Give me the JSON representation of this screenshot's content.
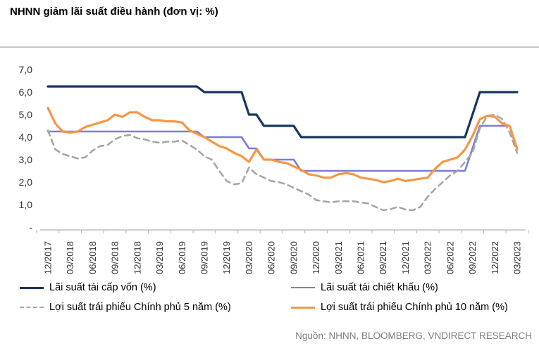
{
  "title": "NHNN giảm lãi suất điều hành (đơn vị: %)",
  "source": "Nguồn: NHNN, BLOOMBERG, VNDIRECT RESEARCH",
  "colors": {
    "refinancing": "#17365d",
    "rediscount": "#7c7cdb",
    "bond5y": "#a6a6a6",
    "bond10y": "#f79646",
    "axis": "#bfbfbf",
    "tick_label": "#333333",
    "source_text": "#808080"
  },
  "chart_data": {
    "type": "line",
    "title": "NHNN giảm lãi suất điều hành (đơn vị: %)",
    "xlabel": "",
    "ylabel": "%",
    "ylim": [
      0,
      7
    ],
    "grid": false,
    "legend_position": "bottom",
    "y_ticks": [
      "7,0",
      "6,0",
      "5,0",
      "4,0",
      "3,0",
      "2,0",
      "1,0",
      "-"
    ],
    "y_tick_values": [
      7,
      6,
      5,
      4,
      3,
      2,
      1,
      0
    ],
    "x_tick_labels": [
      "12/2017",
      "03/2018",
      "06/2018",
      "09/2018",
      "12/2018",
      "03/2019",
      "06/2019",
      "09/2019",
      "12/2019",
      "03/2020",
      "06/2020",
      "09/2020",
      "12/2020",
      "03/2021",
      "06/2021",
      "09/2021",
      "12/2021",
      "03/2022",
      "06/2022",
      "09/2022",
      "12/2022",
      "03/2023"
    ],
    "x": [
      "12/2017",
      "01/2018",
      "02/2018",
      "03/2018",
      "04/2018",
      "05/2018",
      "06/2018",
      "07/2018",
      "08/2018",
      "09/2018",
      "10/2018",
      "11/2018",
      "12/2018",
      "01/2019",
      "02/2019",
      "03/2019",
      "04/2019",
      "05/2019",
      "06/2019",
      "07/2019",
      "08/2019",
      "09/2019",
      "10/2019",
      "11/2019",
      "12/2019",
      "01/2020",
      "02/2020",
      "03/2020",
      "04/2020",
      "05/2020",
      "06/2020",
      "07/2020",
      "08/2020",
      "09/2020",
      "10/2020",
      "11/2020",
      "12/2020",
      "01/2021",
      "02/2021",
      "03/2021",
      "04/2021",
      "05/2021",
      "06/2021",
      "07/2021",
      "08/2021",
      "09/2021",
      "10/2021",
      "11/2021",
      "12/2021",
      "01/2022",
      "02/2022",
      "03/2022",
      "04/2022",
      "05/2022",
      "06/2022",
      "07/2022",
      "08/2022",
      "09/2022",
      "10/2022",
      "11/2022",
      "12/2022",
      "01/2023",
      "02/2023",
      "03/2023"
    ],
    "series": [
      {
        "name": "Lãi suất tái cấp vốn (%)",
        "style": "solid",
        "color_key": "refinancing",
        "width": 3.2,
        "values": [
          6.25,
          6.25,
          6.25,
          6.25,
          6.25,
          6.25,
          6.25,
          6.25,
          6.25,
          6.25,
          6.25,
          6.25,
          6.25,
          6.25,
          6.25,
          6.25,
          6.25,
          6.25,
          6.25,
          6.25,
          6.25,
          6.0,
          6.0,
          6.0,
          6.0,
          6.0,
          6.0,
          5.0,
          5.0,
          4.5,
          4.5,
          4.5,
          4.5,
          4.5,
          4.0,
          4.0,
          4.0,
          4.0,
          4.0,
          4.0,
          4.0,
          4.0,
          4.0,
          4.0,
          4.0,
          4.0,
          4.0,
          4.0,
          4.0,
          4.0,
          4.0,
          4.0,
          4.0,
          4.0,
          4.0,
          4.0,
          4.0,
          5.0,
          6.0,
          6.0,
          6.0,
          6.0,
          6.0,
          6.0
        ]
      },
      {
        "name": "Lãi suất tái chiết khấu (%)",
        "style": "solid",
        "color_key": "rediscount",
        "width": 2.6,
        "values": [
          4.25,
          4.25,
          4.25,
          4.25,
          4.25,
          4.25,
          4.25,
          4.25,
          4.25,
          4.25,
          4.25,
          4.25,
          4.25,
          4.25,
          4.25,
          4.25,
          4.25,
          4.25,
          4.25,
          4.25,
          4.25,
          4.0,
          4.0,
          4.0,
          4.0,
          4.0,
          4.0,
          3.5,
          3.5,
          3.0,
          3.0,
          3.0,
          3.0,
          3.0,
          2.5,
          2.5,
          2.5,
          2.5,
          2.5,
          2.5,
          2.5,
          2.5,
          2.5,
          2.5,
          2.5,
          2.5,
          2.5,
          2.5,
          2.5,
          2.5,
          2.5,
          2.5,
          2.5,
          2.5,
          2.5,
          2.5,
          2.5,
          3.5,
          4.5,
          4.5,
          4.5,
          4.5,
          4.5,
          3.5
        ]
      },
      {
        "name": "Lợi suất trái phiếu Chính phủ 5 năm (%)",
        "style": "dashed",
        "color_key": "bond5y",
        "width": 2.6,
        "values": [
          4.3,
          3.45,
          3.25,
          3.15,
          3.05,
          3.1,
          3.4,
          3.6,
          3.65,
          3.9,
          4.05,
          4.1,
          3.95,
          3.9,
          3.8,
          3.75,
          3.8,
          3.8,
          3.85,
          3.65,
          3.45,
          3.15,
          3.0,
          2.5,
          2.05,
          1.9,
          1.95,
          2.65,
          2.35,
          2.2,
          2.05,
          2.0,
          1.9,
          1.75,
          1.6,
          1.45,
          1.2,
          1.15,
          1.1,
          1.15,
          1.15,
          1.15,
          1.1,
          1.05,
          0.9,
          0.75,
          0.8,
          0.9,
          0.78,
          0.75,
          0.9,
          1.35,
          1.7,
          2.0,
          2.3,
          2.5,
          2.9,
          3.3,
          4.4,
          4.95,
          5.0,
          4.8,
          4.2,
          3.3
        ]
      },
      {
        "name": "Lợi suất trái phiếu Chính phủ 10 năm (%)",
        "style": "solid",
        "color_key": "bond10y",
        "width": 3.2,
        "values": [
          5.3,
          4.6,
          4.25,
          4.2,
          4.25,
          4.45,
          4.55,
          4.65,
          4.75,
          5.0,
          4.9,
          5.1,
          5.1,
          4.9,
          4.75,
          4.75,
          4.7,
          4.7,
          4.65,
          4.3,
          4.15,
          4.0,
          3.8,
          3.6,
          3.5,
          3.3,
          3.15,
          2.9,
          3.45,
          3.0,
          3.0,
          2.9,
          2.85,
          2.7,
          2.55,
          2.35,
          2.3,
          2.2,
          2.2,
          2.35,
          2.4,
          2.35,
          2.2,
          2.15,
          2.1,
          2.0,
          2.05,
          2.15,
          2.05,
          2.1,
          2.15,
          2.2,
          2.6,
          2.9,
          3.0,
          3.1,
          3.45,
          4.05,
          4.8,
          4.95,
          4.9,
          4.6,
          4.5,
          3.45
        ]
      }
    ]
  }
}
